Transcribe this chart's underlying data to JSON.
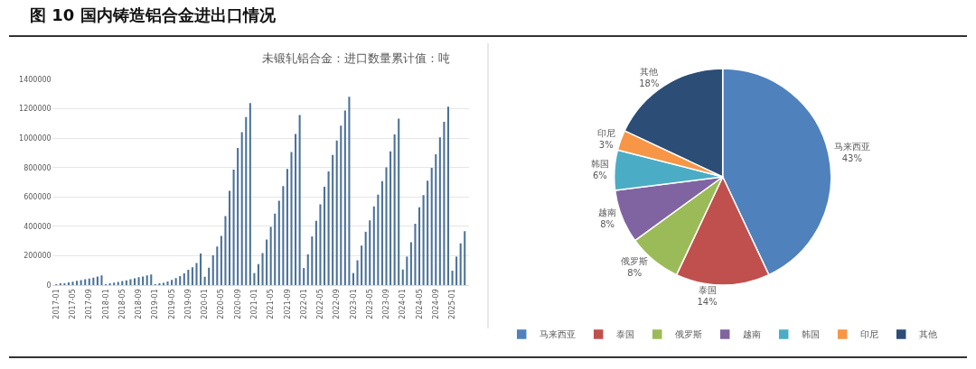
{
  "chart_data": [
    {
      "type": "bar",
      "title": "未锻轧铝合金：进口数量累计值：吨",
      "annotations": [
        "图 10 国内铸造铝合金进出口情况"
      ],
      "categories": [
        "2017-01",
        null,
        null,
        null,
        "2017-05",
        null,
        null,
        null,
        "2017-09",
        null,
        null,
        null,
        "2018-01",
        null,
        null,
        null,
        "2018-05",
        null,
        null,
        null,
        "2018-09",
        null,
        null,
        null,
        "2019-01",
        null,
        null,
        null,
        "2019-05",
        null,
        null,
        null,
        "2019-09",
        null,
        null,
        null,
        "2020-01",
        null,
        null,
        null,
        "2020-05",
        null,
        null,
        null,
        "2020-09",
        null,
        null,
        null,
        "2021-01",
        null,
        null,
        null,
        "2021-05",
        null,
        null,
        null,
        "2021-09",
        null,
        null,
        null,
        "2022-01",
        null,
        null,
        null,
        "2022-05",
        null,
        null,
        null,
        "2022-09",
        null,
        null,
        null,
        "2023-01",
        null,
        null,
        null,
        "2023-05",
        null,
        null,
        null,
        "2023-09",
        null,
        null,
        null,
        "2024-01",
        null,
        null,
        null,
        "2024-05",
        null,
        null,
        null,
        "2024-09",
        null,
        null,
        null,
        "2025-01",
        null,
        null,
        null
      ],
      "values": [
        4000,
        8000,
        13000,
        18000,
        23000,
        29000,
        34000,
        40000,
        45000,
        51000,
        58000,
        66000,
        6000,
        12000,
        17000,
        22000,
        27000,
        33000,
        40000,
        46000,
        53000,
        59000,
        66000,
        72000,
        6000,
        10000,
        16000,
        24000,
        35000,
        48000,
        62000,
        80000,
        105000,
        122000,
        150000,
        215000,
        57000,
        118000,
        202000,
        263000,
        335000,
        469000,
        641000,
        786000,
        933000,
        1041000,
        1143000,
        1239000,
        82000,
        143000,
        218000,
        310000,
        396000,
        486000,
        574000,
        674000,
        790000,
        906000,
        1029000,
        1157000,
        116000,
        210000,
        331000,
        437000,
        549000,
        669000,
        774000,
        886000,
        984000,
        1086000,
        1188000,
        1282000,
        82000,
        169000,
        269000,
        363000,
        441000,
        535000,
        616000,
        708000,
        802000,
        910000,
        1025000,
        1133000,
        106000,
        194000,
        292000,
        418000,
        529000,
        612000,
        710000,
        798000,
        890000,
        1006000,
        1112000,
        1214000,
        98000,
        194000,
        284000,
        367000
      ],
      "color": "#4a7199",
      "ylim": [
        0,
        1400000
      ],
      "yticks": [
        0,
        200000,
        400000,
        600000,
        800000,
        1000000,
        1200000,
        1400000
      ],
      "grid": "y"
    },
    {
      "type": "pie",
      "categories": [
        "马来西亚",
        "泰国",
        "俄罗斯",
        "越南",
        "韩国",
        "印尼",
        "其他"
      ],
      "values": [
        43,
        14,
        8,
        8,
        6,
        3,
        18
      ],
      "value_labels": [
        "43%",
        "14%",
        "8%",
        "8%",
        "6%",
        "3%",
        "18%"
      ],
      "colors": [
        "#4f81bd",
        "#c0504d",
        "#9bbb59",
        "#8064a2",
        "#4bacc6",
        "#f79646",
        "#2c4d75"
      ],
      "legend": "bottom"
    }
  ]
}
